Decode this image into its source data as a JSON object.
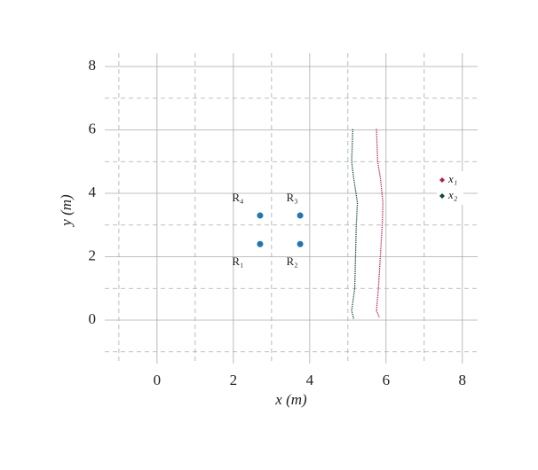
{
  "chart_data": {
    "type": "line",
    "xlabel": "x (m)",
    "ylabel": "y (m)",
    "xlim": [
      -1.37,
      8.4
    ],
    "ylim": [
      -1.37,
      8.42
    ],
    "xticks": [
      0,
      2,
      4,
      6,
      8
    ],
    "yticks": [
      0,
      2,
      4,
      6,
      8
    ],
    "xminor": [
      -1,
      1,
      3,
      5,
      7
    ],
    "yminor": [
      -1,
      1,
      3,
      5,
      7
    ],
    "grid": true,
    "legend": "right",
    "series": [
      {
        "name": "x₁",
        "color": "#c2185b",
        "x": [
          5.82,
          5.75,
          5.8,
          5.85,
          5.9,
          5.92,
          5.85,
          5.78,
          5.75
        ],
        "y": [
          0.1,
          0.3,
          1,
          2,
          3,
          3.7,
          4.5,
          5,
          6.05
        ]
      },
      {
        "name": "x₂",
        "color": "#0b4d2c",
        "x": [
          5.15,
          5.1,
          5.18,
          5.2,
          5.22,
          5.25,
          5.15,
          5.1,
          5.13
        ],
        "y": [
          0.05,
          0.3,
          1,
          2,
          3,
          3.7,
          4.5,
          5,
          6.05
        ]
      }
    ],
    "points": {
      "color": "#1f77b4",
      "x": [
        2.7,
        3.75,
        3.75,
        2.7
      ],
      "y": [
        2.4,
        2.4,
        3.3,
        3.3
      ],
      "labels": [
        "R₁",
        "R₂",
        "R₃",
        "R₄"
      ]
    }
  }
}
